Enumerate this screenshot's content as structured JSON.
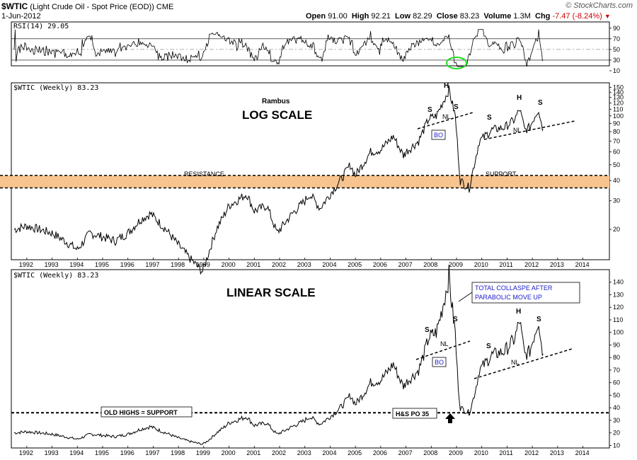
{
  "header": {
    "symbol": "$WTIC",
    "description": "(Light Crude Oil - Spot Price (EOD))",
    "exchange": "CME",
    "date": "1-Jun-2012",
    "open_label": "Open",
    "open": "91.00",
    "high_label": "High",
    "high": "92.21",
    "low_label": "Low",
    "low": "82.29",
    "close_label": "Close",
    "close": "83.23",
    "volume_label": "Volume",
    "volume": "1.3M",
    "chg_label": "Chg",
    "chg": "-7.47 (-8.24%)",
    "chg_color": "#cc0000",
    "watermark": "© StockCharts.com"
  },
  "colors": {
    "band_fill": "#f7c48f",
    "ellipse": "#22dd22",
    "callout_text": "#1a1acc",
    "bo_text": "#1a1acc",
    "price_line": "#000000"
  },
  "x_years": [
    "1992",
    "1993",
    "1994",
    "1995",
    "1996",
    "1997",
    "1998",
    "1999",
    "2000",
    "2001",
    "2002",
    "2003",
    "2004",
    "2005",
    "2006",
    "2007",
    "2008",
    "2009",
    "2010",
    "2011",
    "2012",
    "2013",
    "2014"
  ],
  "chart_data": [
    {
      "type": "line",
      "title": "RSI(14) 29.05",
      "indicator": "RSI(14)",
      "last_value": 29.05,
      "ylim": [
        10,
        95
      ],
      "y_ticks": [
        "90",
        "70",
        "50",
        "30",
        "10"
      ],
      "reference_lines": [
        70,
        50,
        30
      ]
    },
    {
      "type": "line",
      "title": "$WTIC (Weekly) 83.23",
      "scale": "log",
      "annotation_title": "LOG SCALE",
      "author": "Rambus",
      "ylim": [
        13,
        160
      ],
      "y_ticks": [
        "150",
        "140",
        "130",
        "120",
        "110",
        "100",
        "90",
        "80",
        "70",
        "60",
        "50",
        "40",
        "30",
        "20"
      ],
      "band": {
        "from": 36,
        "to": 43,
        "left_label": "RESISTANCE",
        "right_label": "SUPPORT"
      },
      "pattern_labels": [
        "H",
        "S",
        "S",
        "NL",
        "BO",
        "H",
        "S",
        "S",
        "NL"
      ],
      "series": [
        {
          "x": [
            1991.5,
            1992.0,
            1992.5,
            1993.0,
            1993.5,
            1994.0,
            1994.5,
            1995.0,
            1995.5,
            1996.0,
            1996.5,
            1996.9,
            1997.5,
            1998.0,
            1998.5,
            1998.95,
            1999.5,
            2000.0,
            2000.7,
            2001.0,
            2001.5,
            2001.9,
            2002.5,
            2003.0,
            2003.2,
            2003.6,
            2004.0,
            2004.4,
            2004.8,
            2005.0,
            2005.6,
            2006.0,
            2006.5,
            2006.9,
            2007.0,
            2007.5,
            2007.9,
            2008.2,
            2008.5,
            2008.7,
            2008.95,
            2009.15,
            2009.5,
            2009.9,
            2010.4,
            2010.9,
            2011.3,
            2011.5,
            2011.7,
            2011.9,
            2012.1,
            2012.25,
            2012.35,
            2012.42
          ],
          "y": [
            20,
            21,
            20,
            19,
            17,
            15,
            19,
            18,
            17,
            19,
            23,
            25,
            20,
            16,
            13,
            11,
            20,
            28,
            33,
            26,
            28,
            19,
            25,
            30,
            33,
            27,
            33,
            40,
            50,
            43,
            60,
            62,
            75,
            57,
            60,
            70,
            96,
            100,
            125,
            145,
            100,
            40,
            36,
            70,
            82,
            85,
            95,
            110,
            82,
            85,
            100,
            110,
            92,
            83
          ]
        }
      ]
    },
    {
      "type": "line",
      "title": "$WTIC (Weekly) 83.23",
      "scale": "linear",
      "annotation_title": "LINEAR SCALE",
      "ylim": [
        8,
        150
      ],
      "y_ticks": [
        "140",
        "130",
        "120",
        "110",
        "100",
        "90",
        "80",
        "70",
        "60",
        "50",
        "40",
        "30",
        "20",
        "10"
      ],
      "horizontal_line": 36,
      "labels": [
        "OLD HIGHS = SUPPORT",
        "H&S PO 35",
        "TOTAL COLLASPE AFTER",
        "PARABOLIC MOVE UP"
      ],
      "pattern_labels": [
        "S",
        "S",
        "NL",
        "BO",
        "H",
        "S",
        "S",
        "NL"
      ]
    }
  ],
  "panels": {
    "rsi_title": "RSI(14) 29.05",
    "log_title": "$WTIC (Weekly) 83.23",
    "lin_title": "$WTIC (Weekly) 83.23",
    "rambus": "Rambus",
    "log_scale": "LOG SCALE",
    "linear_scale": "LINEAR SCALE",
    "resistance": "RESISTANCE",
    "support": "SUPPORT",
    "old_highs": "OLD HIGHS = SUPPORT",
    "hs_po": "H&S PO 35",
    "collapse_1": "TOTAL COLLASPE AFTER",
    "collapse_2": "PARABOLIC MOVE UP",
    "h": "H",
    "s": "S",
    "nl": "NL",
    "bo": "BO"
  }
}
